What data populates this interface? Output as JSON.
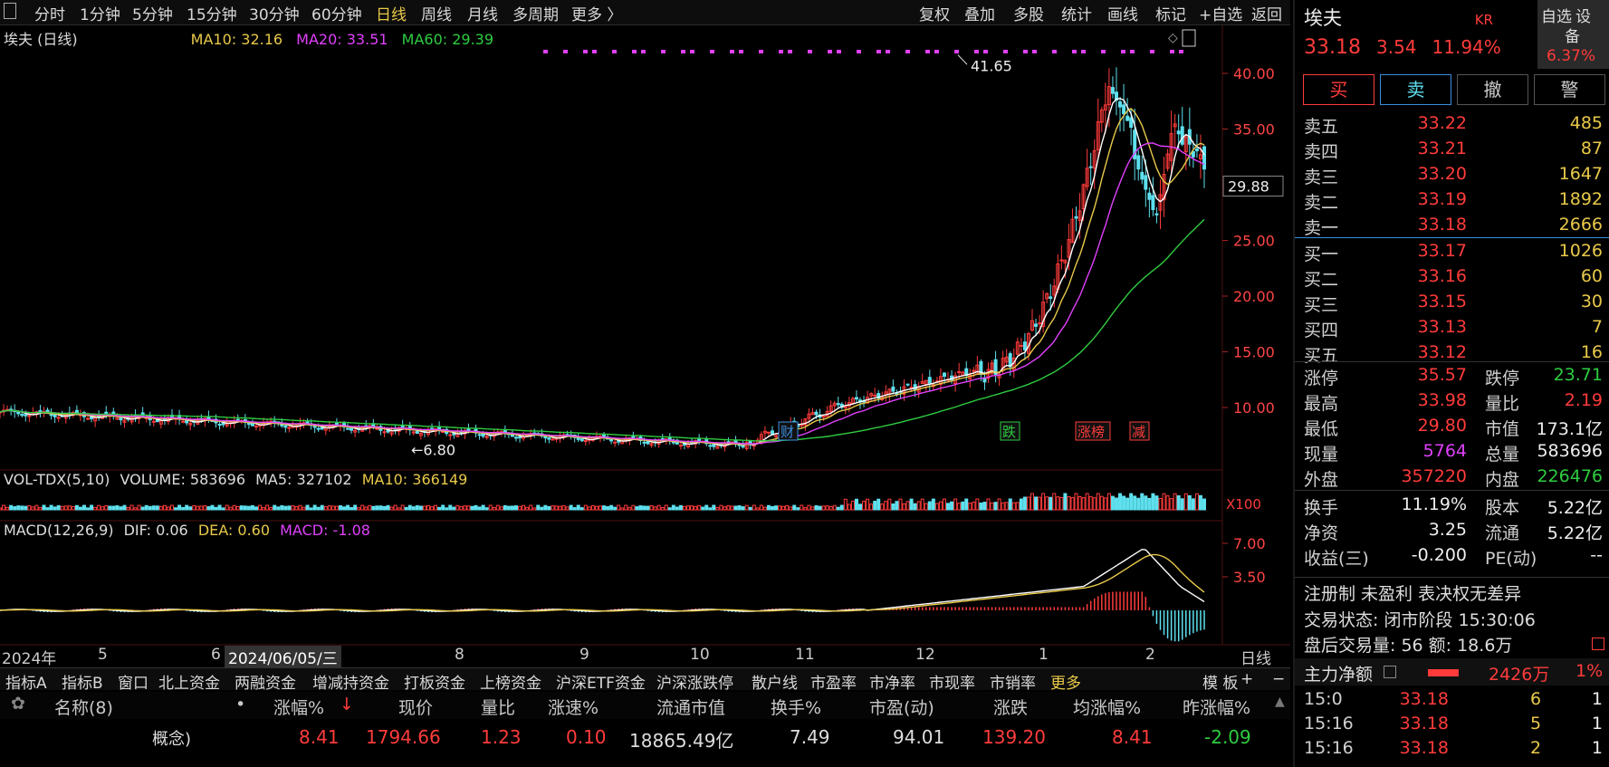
{
  "toolbar": {
    "periods": [
      "分时",
      "1分钟",
      "5分钟",
      "15分钟",
      "30分钟",
      "60分钟",
      "日线",
      "周线",
      "月线",
      "多周期",
      "更多 〉"
    ],
    "active_period": "日线",
    "actions": [
      "复权",
      "叠加",
      "多股",
      "统计",
      "画线",
      "标记",
      "+自选",
      "返回"
    ]
  },
  "chart_header": {
    "name": "埃夫 (日线)",
    "ma10": "MA10: 32.16",
    "ma20": "MA20: 33.51",
    "ma60": "MA60: 29.39"
  },
  "price_axis": [
    "40.00",
    "35.00",
    "30.00",
    "25.00",
    "20.00",
    "15.00",
    "10.00"
  ],
  "current_price_tag": "29.88",
  "high_label": "41.65",
  "low_label": "6.80",
  "markers": [
    "财",
    "跌",
    "涨榜",
    "减"
  ],
  "volume_header": {
    "name": "VOL-TDX(5,10)",
    "volume": "VOLUME: 583696",
    "ma5": "MA5: 327102",
    "ma10": "MA10: 366149",
    "unit": "X100"
  },
  "macd_header": {
    "name": "MACD(12,26,9)",
    "dif": "DIF: 0.06",
    "dea": "DEA: 0.60",
    "macd": "MACD: -1.08"
  },
  "macd_axis": [
    "7.00",
    "3.50"
  ],
  "date_axis": {
    "year": "2024年",
    "months": [
      "5",
      "6",
      "8",
      "9",
      "10",
      "11",
      "12",
      "1",
      "2"
    ],
    "cursor_date": "2024/06/05/三",
    "period": "日线"
  },
  "bottom_tabs": [
    "指标A",
    "指标B",
    "窗口",
    "北上资金",
    "两融资金",
    "增减持资金",
    "打板资金",
    "上榜资金",
    "沪深ETF资金",
    "沪深涨跌停",
    "散户线",
    "市盈率",
    "市净率",
    "市现率",
    "市销率",
    "更多"
  ],
  "bottom_right": [
    "模 板",
    "+",
    "−"
  ],
  "table": {
    "headers": [
      "名称(8)",
      "•",
      "涨幅%",
      "现价",
      "量比",
      "涨速%",
      "流通市值",
      "换手%",
      "市盈(动)",
      "涨跌",
      "均涨幅%",
      "昨涨幅%"
    ],
    "row": [
      "概念)",
      "8.41",
      "1794.66",
      "1.23",
      "0.10",
      "18865.49亿",
      "7.49",
      "94.01",
      "139.20",
      "8.41",
      "-2.09"
    ]
  },
  "quote": {
    "title": "埃夫",
    "title_suffix": "KR",
    "side_button": "自选",
    "side_top": "设",
    "badge_top": "备",
    "badge_pct": "6.37%",
    "price": "33.18",
    "change": "3.54",
    "change_pct": "11.94%",
    "buttons": [
      "买",
      "卖",
      "撤",
      "警"
    ],
    "sells": [
      {
        "label": "卖五",
        "price": "33.22",
        "vol": "485"
      },
      {
        "label": "卖四",
        "price": "33.21",
        "vol": "87"
      },
      {
        "label": "卖三",
        "price": "33.20",
        "vol": "1647"
      },
      {
        "label": "卖二",
        "price": "33.19",
        "vol": "1892"
      },
      {
        "label": "卖一",
        "price": "33.18",
        "vol": "2666"
      }
    ],
    "buys": [
      {
        "label": "买一",
        "price": "33.17",
        "vol": "1026"
      },
      {
        "label": "买二",
        "price": "33.16",
        "vol": "60"
      },
      {
        "label": "买三",
        "price": "33.15",
        "vol": "30"
      },
      {
        "label": "买四",
        "price": "33.13",
        "vol": "7"
      },
      {
        "label": "买五",
        "price": "33.12",
        "vol": "16"
      }
    ],
    "stats": [
      {
        "l1": "涨停",
        "v1": "35.57",
        "l2": "跌停",
        "v2": "23.71"
      },
      {
        "l1": "最高",
        "v1": "33.98",
        "l2": "量比",
        "v2": "2.19"
      },
      {
        "l1": "最低",
        "v1": "29.80",
        "l2": "市值",
        "v2": "173.1亿"
      },
      {
        "l1": "现量",
        "v1": "5764",
        "l2": "总量",
        "v2": "583696"
      },
      {
        "l1": "外盘",
        "v1": "357220",
        "l2": "内盘",
        "v2": "226476"
      }
    ],
    "fund": [
      {
        "l1": "换手",
        "v1": "11.19%",
        "l2": "股本",
        "v2": "5.22亿"
      },
      {
        "l1": "净资",
        "v1": "3.25",
        "l2": "流通",
        "v2": "5.22亿"
      },
      {
        "l1": "收益(三)",
        "v1": "-0.200",
        "l2": "PE(动)",
        "v2": "--"
      }
    ],
    "note": "注册制 未盈利 表决权无差异",
    "trade_status": "交易状态: 闭市阶段 15:30:06",
    "after_hours": "盘后交易量: 56  额: 18.6万",
    "main_flow_label": "主力净额",
    "main_flow_value": "2426万",
    "main_flow_pct": "1%",
    "ticks": [
      {
        "t": "15:0",
        "p": "33.18",
        "v": "6",
        "n": "1"
      },
      {
        "t": "15:16",
        "p": "33.18",
        "v": "5",
        "n": "1"
      },
      {
        "t": "15:16",
        "p": "33.18",
        "v": "2",
        "n": "1"
      }
    ]
  },
  "colors": {
    "up": "#ff3b3b",
    "down": "#2ecc40",
    "ma10": "#e8c94a",
    "ma20": "#e040fb",
    "ma60": "#2ecc40",
    "cyan": "#5ee0ee"
  }
}
